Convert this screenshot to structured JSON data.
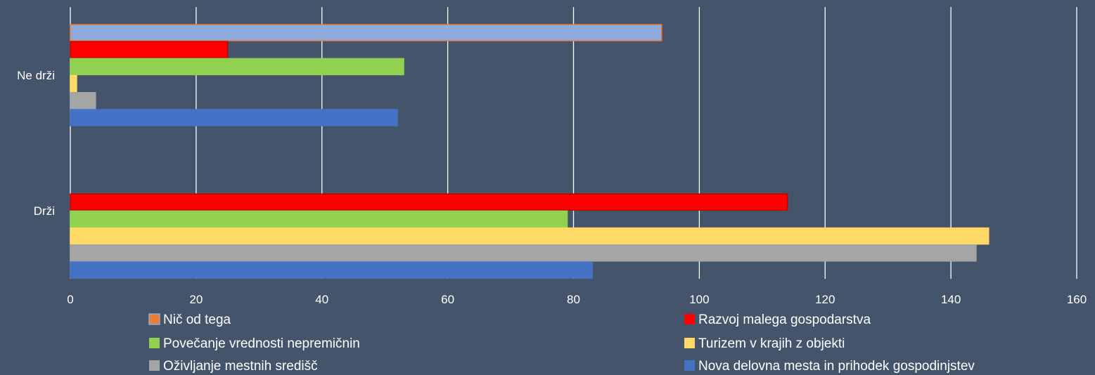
{
  "chart_data": {
    "type": "bar",
    "orientation": "horizontal",
    "title": "",
    "xlabel": "",
    "ylabel": "",
    "categories": [
      "Ne drži",
      "Drži"
    ],
    "xlim": [
      0,
      160
    ],
    "x_ticks": [
      0,
      20,
      40,
      60,
      80,
      100,
      120,
      140,
      160
    ],
    "grid": "vertical",
    "legend_position": "bottom",
    "series": [
      {
        "name": "Nič od tega",
        "color": "#8faadc",
        "border": "#ed7d31",
        "values": [
          94,
          0
        ]
      },
      {
        "name": "Razvoj malega gospodarstva",
        "color": "#ff0000",
        "border": "#c00000",
        "values": [
          25,
          114
        ]
      },
      {
        "name": "Povečanje vrednosti nepremičnin",
        "color": "#92d050",
        "border": "#92d050",
        "values": [
          53,
          79
        ]
      },
      {
        "name": "Turizem v krajih z objekti",
        "color": "#ffd966",
        "border": "#ffd966",
        "values": [
          1,
          146
        ]
      },
      {
        "name": "Oživljanje mestnih središč",
        "color": "#a5a5a5",
        "border": "#a5a5a5",
        "values": [
          4,
          144
        ]
      },
      {
        "name": "Nova delovna mesta in prihodek gospodinjstev",
        "color": "#4472c4",
        "border": "#4472c4",
        "values": [
          52,
          83
        ]
      }
    ],
    "legend_swatches": [
      "#ed7d31",
      "#ff0000",
      "#92d050",
      "#ffd966",
      "#a5a5a5",
      "#4472c4"
    ],
    "colors": {
      "background": "#44546a",
      "grid": "#ffffff",
      "text": "#ffffff"
    }
  }
}
